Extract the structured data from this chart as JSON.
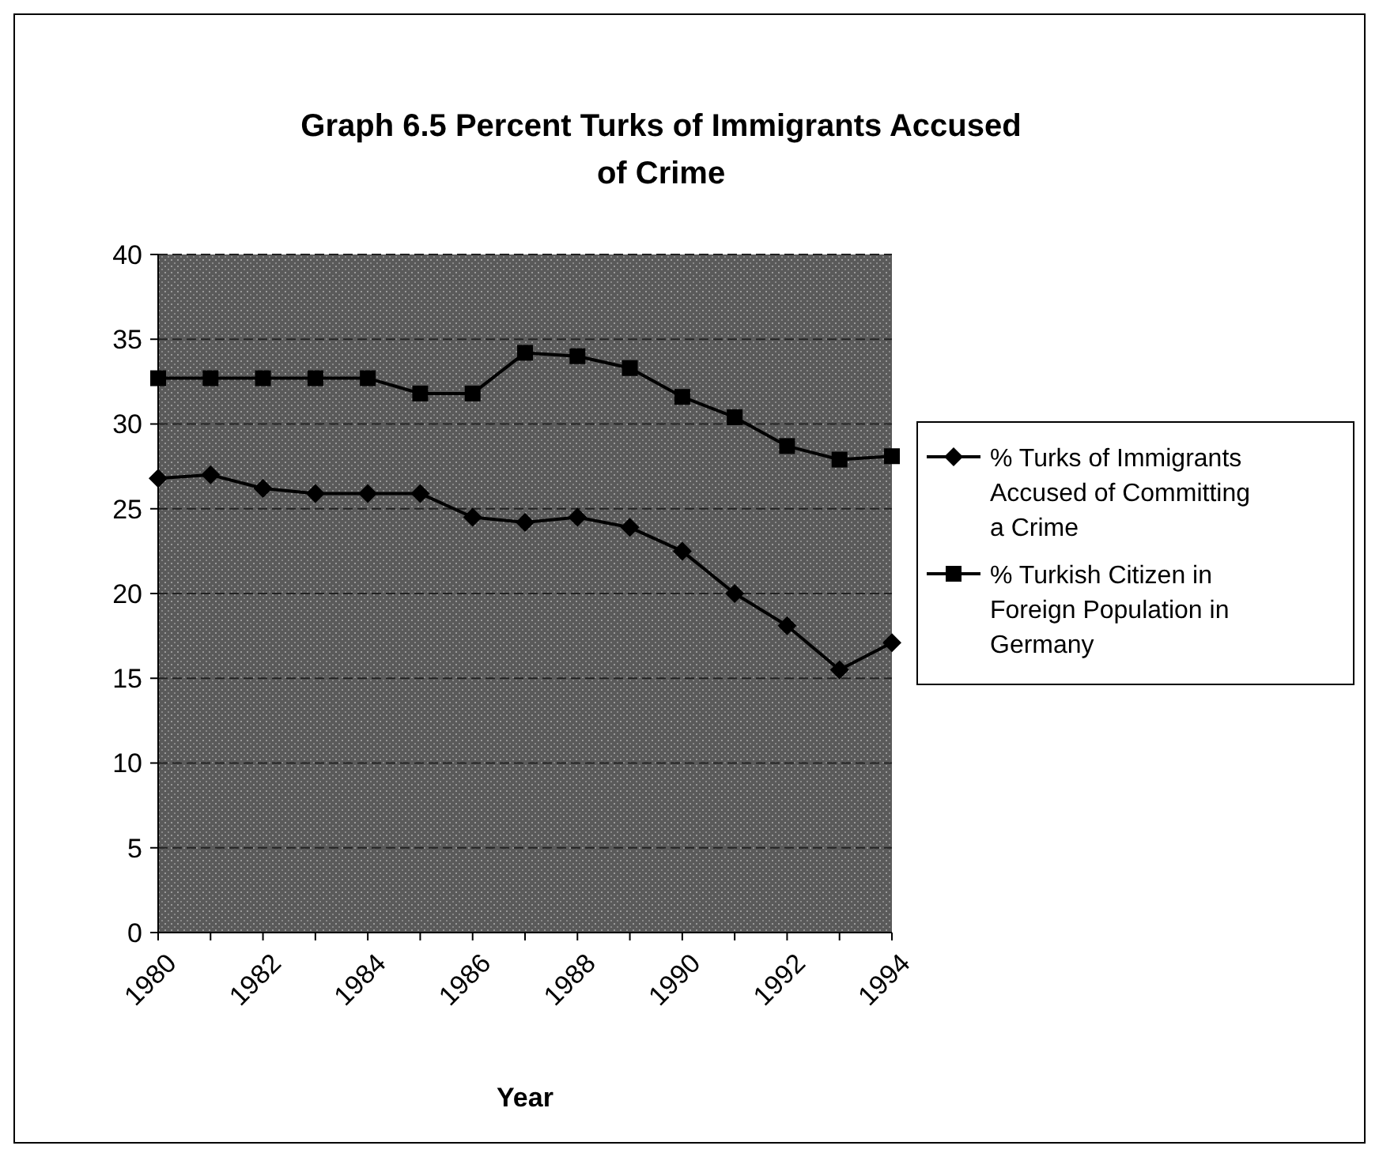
{
  "chart_data": {
    "type": "line",
    "title": "Graph 6.5  Percent Turks of Immigrants Accused of Crime",
    "xlabel": "Year",
    "x": [
      1980,
      1981,
      1982,
      1983,
      1984,
      1985,
      1986,
      1987,
      1988,
      1989,
      1990,
      1991,
      1992,
      1993,
      1994
    ],
    "xlim": [
      1980,
      1994
    ],
    "xticks": [
      1980,
      1982,
      1984,
      1986,
      1988,
      1990,
      1992,
      1994
    ],
    "ylim": [
      0,
      40
    ],
    "yticks": [
      0,
      5,
      10,
      15,
      20,
      25,
      30,
      35,
      40
    ],
    "grid": "y",
    "legend": "right",
    "series": [
      {
        "name": "% Turks of Immigrants Accused of Committing a Crime",
        "color": "#000000",
        "marker": "diamond",
        "values": [
          26.8,
          27.0,
          26.2,
          25.9,
          25.9,
          25.9,
          24.5,
          24.2,
          24.5,
          23.9,
          22.5,
          20.0,
          18.1,
          15.5,
          17.1
        ]
      },
      {
        "name": "% Turkish Citizen in Foreign Population in Germany",
        "color": "#000000",
        "marker": "square",
        "values": [
          32.7,
          32.7,
          32.7,
          32.7,
          32.7,
          31.8,
          31.8,
          34.2,
          34.0,
          33.3,
          31.6,
          30.4,
          28.7,
          27.9,
          28.1
        ]
      }
    ]
  }
}
